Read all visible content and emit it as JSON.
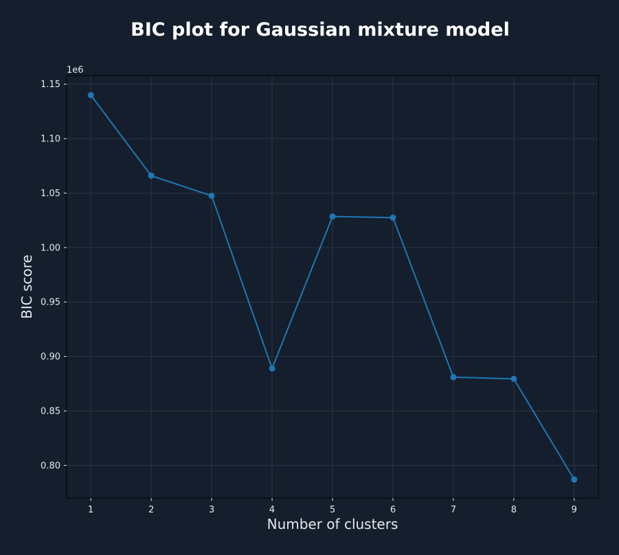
{
  "chart_data": {
    "type": "line",
    "title": "BIC plot for Gaussian mixture model",
    "xlabel": "Number of clusters",
    "ylabel": "BIC score",
    "y_offset_label": "1e6",
    "x": [
      1,
      2,
      3,
      4,
      5,
      6,
      7,
      8,
      9
    ],
    "series": [
      {
        "values": [
          1140000,
          1066000,
          1047500,
          889000,
          1028500,
          1027500,
          881000,
          879500,
          787000
        ]
      }
    ],
    "xlim": [
      0.6,
      9.4
    ],
    "ylim": [
      770000,
      1158000
    ],
    "x_ticks": [
      1,
      2,
      3,
      4,
      5,
      6,
      7,
      8,
      9
    ],
    "x_tick_labels": [
      "1",
      "2",
      "3",
      "4",
      "5",
      "6",
      "7",
      "8",
      "9"
    ],
    "y_ticks": [
      800000,
      850000,
      900000,
      950000,
      1000000,
      1050000,
      1100000,
      1150000
    ],
    "y_tick_labels": [
      "0.80",
      "0.85",
      "0.90",
      "0.95",
      "1.00",
      "1.05",
      "1.10",
      "1.15"
    ],
    "grid": true,
    "colors": {
      "background": "#141e2c",
      "line": "#1f77b4",
      "grid": "#2c3646",
      "text": "#e6e9ee",
      "title": "#ffffff",
      "axis": "#000000"
    }
  }
}
